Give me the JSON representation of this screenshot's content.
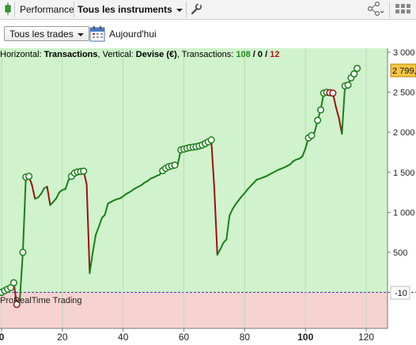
{
  "toolbar": {
    "tab_performance": "Performance",
    "instruments_label": "Tous les instruments"
  },
  "filters": {
    "trades_label": "Tous les trades",
    "date_label": "Aujourd'hui"
  },
  "chart_data": {
    "type": "line",
    "header": {
      "prefix": "Horizontal: ",
      "x_name": "Transactions",
      "middle": ", Vertical: ",
      "y_name": "Devise (€)",
      "count_prefix": ", Transactions: ",
      "win_count": "108",
      "slash1": " / ",
      "zero_count": "0",
      "slash2": " / ",
      "loss_count": "12"
    },
    "watermark": "ProRealTime Trading",
    "current_value_label": "2 799,",
    "zero_label": "-10",
    "xlim": [
      0,
      127
    ],
    "ylim": [
      -450,
      3050
    ],
    "x_ticks": [
      {
        "v": 0,
        "label": "0",
        "bold": true
      },
      {
        "v": 20,
        "label": "20",
        "bold": false
      },
      {
        "v": 40,
        "label": "40",
        "bold": false
      },
      {
        "v": 60,
        "label": "60",
        "bold": false
      },
      {
        "v": 80,
        "label": "80",
        "bold": false
      },
      {
        "v": 100,
        "label": "100",
        "bold": true
      },
      {
        "v": 120,
        "label": "120",
        "bold": false
      }
    ],
    "y_ticks": [
      {
        "v": 500,
        "label": "500"
      },
      {
        "v": 1000,
        "label": "1 000"
      },
      {
        "v": 1500,
        "label": "1 500"
      },
      {
        "v": 2000,
        "label": "2 000"
      },
      {
        "v": 2500,
        "label": "2 500"
      },
      {
        "v": 3000,
        "label": "3 000"
      }
    ],
    "points": [
      [
        0,
        0
      ],
      [
        1,
        20
      ],
      [
        2,
        40
      ],
      [
        3,
        60
      ],
      [
        4,
        120
      ],
      [
        5,
        -150
      ],
      [
        6,
        -100
      ],
      [
        7,
        500
      ],
      [
        8,
        1440
      ],
      [
        9,
        1450
      ],
      [
        10,
        1340
      ],
      [
        11,
        1170
      ],
      [
        12,
        1185
      ],
      [
        13,
        1230
      ],
      [
        14,
        1300
      ],
      [
        15,
        1320
      ],
      [
        16,
        1090
      ],
      [
        17,
        1130
      ],
      [
        18,
        1175
      ],
      [
        19,
        1250
      ],
      [
        20,
        1280
      ],
      [
        21,
        1290
      ],
      [
        22,
        1400
      ],
      [
        23,
        1450
      ],
      [
        24,
        1490
      ],
      [
        25,
        1505
      ],
      [
        26,
        1510
      ],
      [
        27,
        1515
      ],
      [
        28,
        1350
      ],
      [
        29,
        240
      ],
      [
        30,
        500
      ],
      [
        31,
        720
      ],
      [
        32,
        820
      ],
      [
        33,
        930
      ],
      [
        34,
        970
      ],
      [
        35,
        1110
      ],
      [
        36,
        1130
      ],
      [
        37,
        1150
      ],
      [
        38,
        1165
      ],
      [
        39,
        1175
      ],
      [
        40,
        1200
      ],
      [
        41,
        1230
      ],
      [
        42,
        1250
      ],
      [
        43,
        1275
      ],
      [
        44,
        1300
      ],
      [
        45,
        1320
      ],
      [
        46,
        1340
      ],
      [
        47,
        1370
      ],
      [
        48,
        1390
      ],
      [
        49,
        1420
      ],
      [
        50,
        1435
      ],
      [
        51,
        1455
      ],
      [
        52,
        1470
      ],
      [
        53,
        1520
      ],
      [
        54,
        1550
      ],
      [
        55,
        1570
      ],
      [
        56,
        1580
      ],
      [
        57,
        1590
      ],
      [
        58,
        1605
      ],
      [
        59,
        1780
      ],
      [
        60,
        1790
      ],
      [
        61,
        1800
      ],
      [
        62,
        1810
      ],
      [
        63,
        1815
      ],
      [
        64,
        1820
      ],
      [
        65,
        1830
      ],
      [
        66,
        1840
      ],
      [
        67,
        1860
      ],
      [
        68,
        1880
      ],
      [
        69,
        1905
      ],
      [
        70,
        1300
      ],
      [
        71,
        470
      ],
      [
        72,
        540
      ],
      [
        73,
        620
      ],
      [
        74,
        660
      ],
      [
        75,
        960
      ],
      [
        76,
        1040
      ],
      [
        77,
        1100
      ],
      [
        78,
        1150
      ],
      [
        79,
        1200
      ],
      [
        80,
        1240
      ],
      [
        81,
        1290
      ],
      [
        82,
        1330
      ],
      [
        83,
        1370
      ],
      [
        84,
        1410
      ],
      [
        85,
        1420
      ],
      [
        86,
        1435
      ],
      [
        87,
        1450
      ],
      [
        88,
        1470
      ],
      [
        89,
        1490
      ],
      [
        90,
        1510
      ],
      [
        91,
        1530
      ],
      [
        92,
        1545
      ],
      [
        93,
        1560
      ],
      [
        94,
        1580
      ],
      [
        95,
        1600
      ],
      [
        96,
        1640
      ],
      [
        97,
        1660
      ],
      [
        98,
        1670
      ],
      [
        99,
        1700
      ],
      [
        100,
        1800
      ],
      [
        101,
        1930
      ],
      [
        102,
        1960
      ],
      [
        103,
        2000
      ],
      [
        104,
        2150
      ],
      [
        105,
        2280
      ],
      [
        106,
        2490
      ],
      [
        107,
        2500
      ],
      [
        108,
        2495
      ],
      [
        109,
        2490
      ],
      [
        110,
        2320
      ],
      [
        111,
        2180
      ],
      [
        112,
        1980
      ],
      [
        113,
        2580
      ],
      [
        114,
        2590
      ],
      [
        115,
        2680
      ],
      [
        116,
        2730
      ],
      [
        117,
        2799
      ]
    ],
    "markers": [
      0,
      1,
      2,
      3,
      4,
      5,
      7,
      8,
      9,
      23,
      24,
      25,
      26,
      27,
      53,
      54,
      55,
      56,
      57,
      59,
      60,
      61,
      62,
      63,
      64,
      65,
      66,
      67,
      68,
      69,
      101,
      102,
      104,
      105,
      106,
      107,
      108,
      109,
      113,
      114,
      115,
      116,
      117
    ],
    "colors": {
      "profit_bg": "#d0f2cc",
      "loss_bg": "#f6d3d1",
      "up_line": "#1a7f1a",
      "down_line": "#9b1111",
      "marker_fill": "#ffffff",
      "win_text": "#1f8a1f",
      "loss_text": "#b01616",
      "zero_line": "#3b3bb0",
      "value_badge": "#f5c542"
    }
  }
}
